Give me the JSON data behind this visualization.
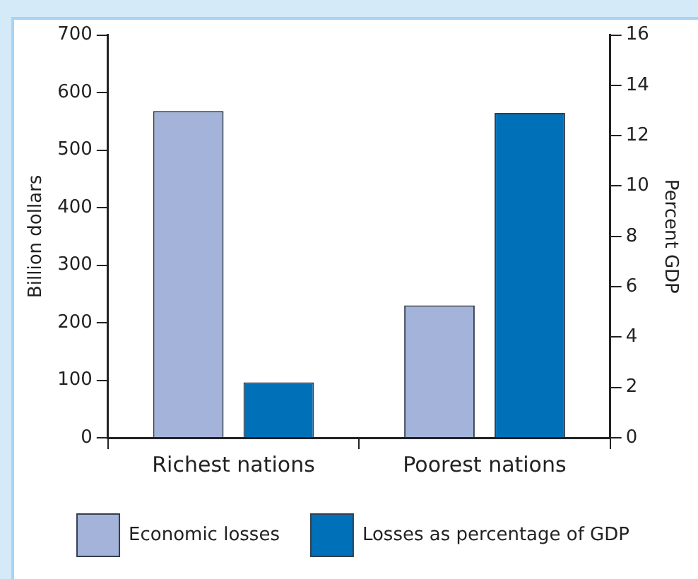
{
  "chart_data": {
    "type": "bar",
    "ylabel": "Billion dollars",
    "y2label": "Percent GDP",
    "categories": [
      "Richest nations",
      "Poorest nations"
    ],
    "series": [
      {
        "name": "Economic losses",
        "color": "#a3b3d9",
        "values": [
          568,
          230
        ]
      },
      {
        "name": "Losses as percentage of GDP",
        "color": "#0071b9",
        "values": [
          2.2,
          12.9
        ],
        "axis": "y2"
      }
    ],
    "ylim": [
      0,
      700
    ],
    "yticks": [
      0,
      100,
      200,
      300,
      400,
      500,
      600,
      700
    ],
    "y2lim": [
      0,
      16
    ],
    "y2ticks": [
      0,
      2,
      4,
      6,
      8,
      10,
      12,
      14,
      16
    ],
    "grid": false,
    "legend": "bottom"
  }
}
